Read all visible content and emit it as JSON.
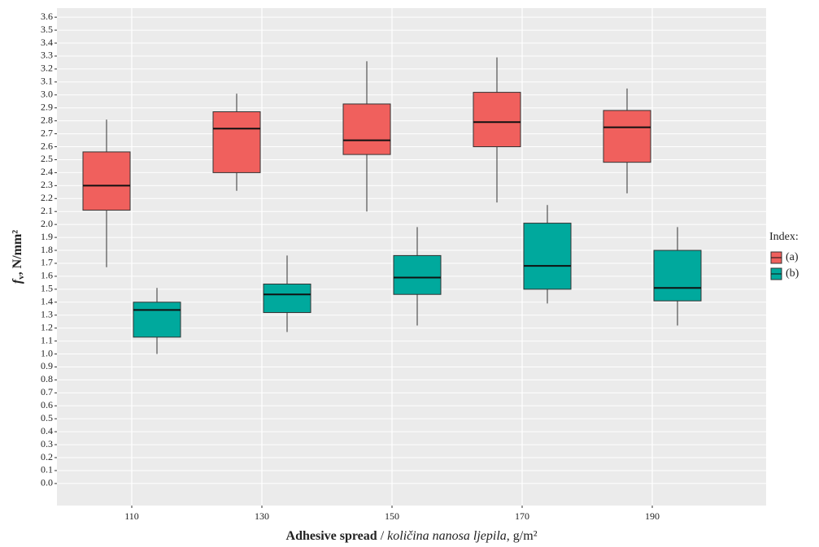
{
  "chart_data": {
    "type": "box",
    "xlabel": {
      "bold": "Adhesive spread",
      "sep": " / ",
      "italic": "količina nanosa ljepila",
      "unit": ", g/m²"
    },
    "ylabel": {
      "symbol": "f",
      "subscript": "v",
      "unit": ", N/mm²"
    },
    "categories": [
      "110",
      "130",
      "150",
      "170",
      "190"
    ],
    "legend_title": "Index:",
    "series": [
      {
        "name": "(a)",
        "color": "#f0605d",
        "values": [
          {
            "low": 1.67,
            "q1": 2.11,
            "median": 2.3,
            "q3": 2.56,
            "high": 2.81
          },
          {
            "low": 2.26,
            "q1": 2.4,
            "median": 2.74,
            "q3": 2.87,
            "high": 3.01
          },
          {
            "low": 2.1,
            "q1": 2.54,
            "median": 2.65,
            "q3": 2.93,
            "high": 3.26
          },
          {
            "low": 2.17,
            "q1": 2.6,
            "median": 2.79,
            "q3": 3.02,
            "high": 3.29
          },
          {
            "low": 2.24,
            "q1": 2.48,
            "median": 2.75,
            "q3": 2.88,
            "high": 3.05
          }
        ]
      },
      {
        "name": "(b)",
        "color": "#00a99d",
        "values": [
          {
            "low": 1.0,
            "q1": 1.13,
            "median": 1.34,
            "q3": 1.4,
            "high": 1.51
          },
          {
            "low": 1.17,
            "q1": 1.32,
            "median": 1.46,
            "q3": 1.54,
            "high": 1.76
          },
          {
            "low": 1.22,
            "q1": 1.46,
            "median": 1.59,
            "q3": 1.76,
            "high": 1.98
          },
          {
            "low": 1.39,
            "q1": 1.5,
            "median": 1.68,
            "q3": 2.01,
            "high": 2.15
          },
          {
            "low": 1.22,
            "q1": 1.41,
            "median": 1.51,
            "q3": 1.8,
            "high": 1.98
          }
        ]
      }
    ],
    "ylim": [
      -0.17,
      3.67
    ],
    "yticks": [
      {
        "value": 0,
        "label": "0.0"
      },
      0.1,
      0.2,
      0.3,
      0.4,
      0.5,
      0.6,
      0.7,
      0.8,
      0.9,
      {
        "value": 1,
        "label": "1.0"
      },
      1.1,
      1.2,
      1.3,
      1.4,
      1.5,
      1.6,
      1.7,
      1.8,
      1.9,
      {
        "value": 2,
        "label": "2.0"
      },
      2.1,
      2.2,
      2.3,
      2.4,
      2.5,
      2.6,
      2.7,
      2.8,
      2.9,
      {
        "value": 3,
        "label": "3.0"
      },
      3.1,
      3.2,
      3.3,
      3.4,
      3.5,
      3.6
    ],
    "grid": true
  }
}
